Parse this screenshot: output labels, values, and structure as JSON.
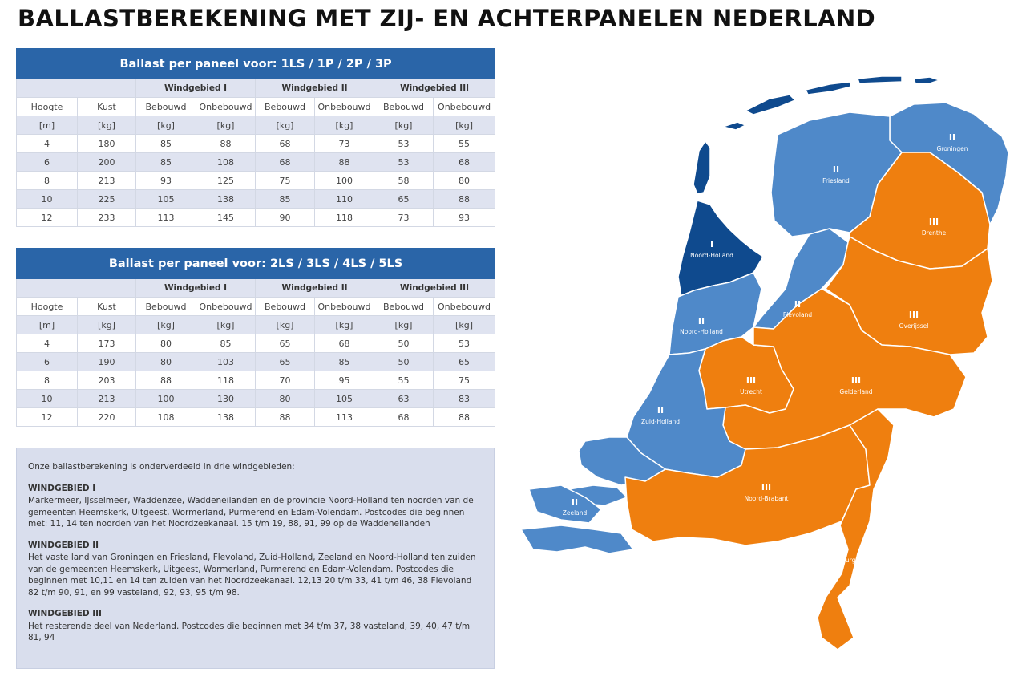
{
  "title": "BALLASTBEREKENING MET ZIJ- EN ACHTERPANELEN NEDERLAND",
  "tables": [
    {
      "heading": "Ballast per paneel voor: 1LS / 1P / 2P / 3P",
      "zones": [
        "Windgebied I",
        "Windgebied II",
        "Windgebied III"
      ],
      "columns": [
        "Hoogte",
        "Kust",
        "Bebouwd",
        "Onbebouwd",
        "Bebouwd",
        "Onbebouwd",
        "Bebouwd",
        "Onbebouwd"
      ],
      "units": [
        "[m]",
        "[kg]",
        "[kg]",
        "[kg]",
        "[kg]",
        "[kg]",
        "[kg]",
        "[kg]"
      ],
      "rows": [
        [
          "4",
          "180",
          "85",
          "88",
          "68",
          "73",
          "53",
          "55"
        ],
        [
          "6",
          "200",
          "85",
          "108",
          "68",
          "88",
          "53",
          "68"
        ],
        [
          "8",
          "213",
          "93",
          "125",
          "75",
          "100",
          "58",
          "80"
        ],
        [
          "10",
          "225",
          "105",
          "138",
          "85",
          "110",
          "65",
          "88"
        ],
        [
          "12",
          "233",
          "113",
          "145",
          "90",
          "118",
          "73",
          "93"
        ]
      ]
    },
    {
      "heading": "Ballast per paneel voor: 2LS / 3LS / 4LS / 5LS",
      "zones": [
        "Windgebied I",
        "Windgebied II",
        "Windgebied III"
      ],
      "columns": [
        "Hoogte",
        "Kust",
        "Bebouwd",
        "Onbebouwd",
        "Bebouwd",
        "Onbebouwd",
        "Bebouwd",
        "Onbebouwd"
      ],
      "units": [
        "[m]",
        "[kg]",
        "[kg]",
        "[kg]",
        "[kg]",
        "[kg]",
        "[kg]",
        "[kg]"
      ],
      "rows": [
        [
          "4",
          "173",
          "80",
          "85",
          "65",
          "68",
          "50",
          "53"
        ],
        [
          "6",
          "190",
          "80",
          "103",
          "65",
          "85",
          "50",
          "65"
        ],
        [
          "8",
          "203",
          "88",
          "118",
          "70",
          "95",
          "55",
          "75"
        ],
        [
          "10",
          "213",
          "100",
          "130",
          "80",
          "105",
          "63",
          "83"
        ],
        [
          "12",
          "220",
          "108",
          "138",
          "88",
          "113",
          "68",
          "88"
        ]
      ]
    }
  ],
  "info": {
    "intro": "Onze ballastberekening is onderverdeeld in drie windgebieden:",
    "zones": [
      {
        "heading": "WINDGEBIED I",
        "text": "Markermeer, IJsselmeer, Waddenzee, Waddeneilanden en de provincie Noord-Holland ten noorden van de gemeenten Heemskerk, Uitgeest, Wormerland, Purmerend en Edam-Volendam. Postcodes die beginnen met: 11, 14 ten noorden van het Noordzeekanaal. 15 t/m 19, 88, 91, 99 op de Waddeneilanden"
      },
      {
        "heading": "WINDGEBIED II",
        "text": "Het vaste land van Groningen en Friesland, Flevoland, Zuid-Holland, Zeeland en Noord-Holland  ten zuiden van de gemeenten Heemskerk, Uitgeest, Wormerland, Purmerend en Edam-Volendam. Postcodes die beginnen met 10,11 en 14 ten zuiden van het Noordzeekanaal. 12,13 20 t/m 33, 41 t/m 46, 38 Flevoland 82 t/m 90, 91, en 99 vasteland, 92, 93, 95 t/m 98."
      },
      {
        "heading": "WINDGEBIED III",
        "text": "Het resterende deel van Nederland. Postcodes die beginnen met 34 t/m 37, 38 vasteland, 39, 40, 47 t/m 81, 94"
      }
    ]
  },
  "map": {
    "colors": {
      "zone1": "#0f4a8e",
      "zone2": "#4f89c9",
      "zone3": "#ef7f0f",
      "border": "#ffffff"
    },
    "regions": [
      {
        "roman": "II",
        "name": "Groningen"
      },
      {
        "roman": "II",
        "name": "Friesland"
      },
      {
        "roman": "III",
        "name": "Drenthe"
      },
      {
        "roman": "I",
        "name": "Noord-Holland"
      },
      {
        "roman": "II",
        "name": "Flevoland"
      },
      {
        "roman": "II",
        "name": "Noord-Holland"
      },
      {
        "roman": "III",
        "name": "Overijssel"
      },
      {
        "roman": "III",
        "name": "Utrecht"
      },
      {
        "roman": "III",
        "name": "Gelderland"
      },
      {
        "roman": "II",
        "name": "Zuid-Holland"
      },
      {
        "roman": "II",
        "name": "Zeeland"
      },
      {
        "roman": "III",
        "name": "Noord-Brabant"
      },
      {
        "roman": "III",
        "name": "Limburg"
      }
    ]
  }
}
